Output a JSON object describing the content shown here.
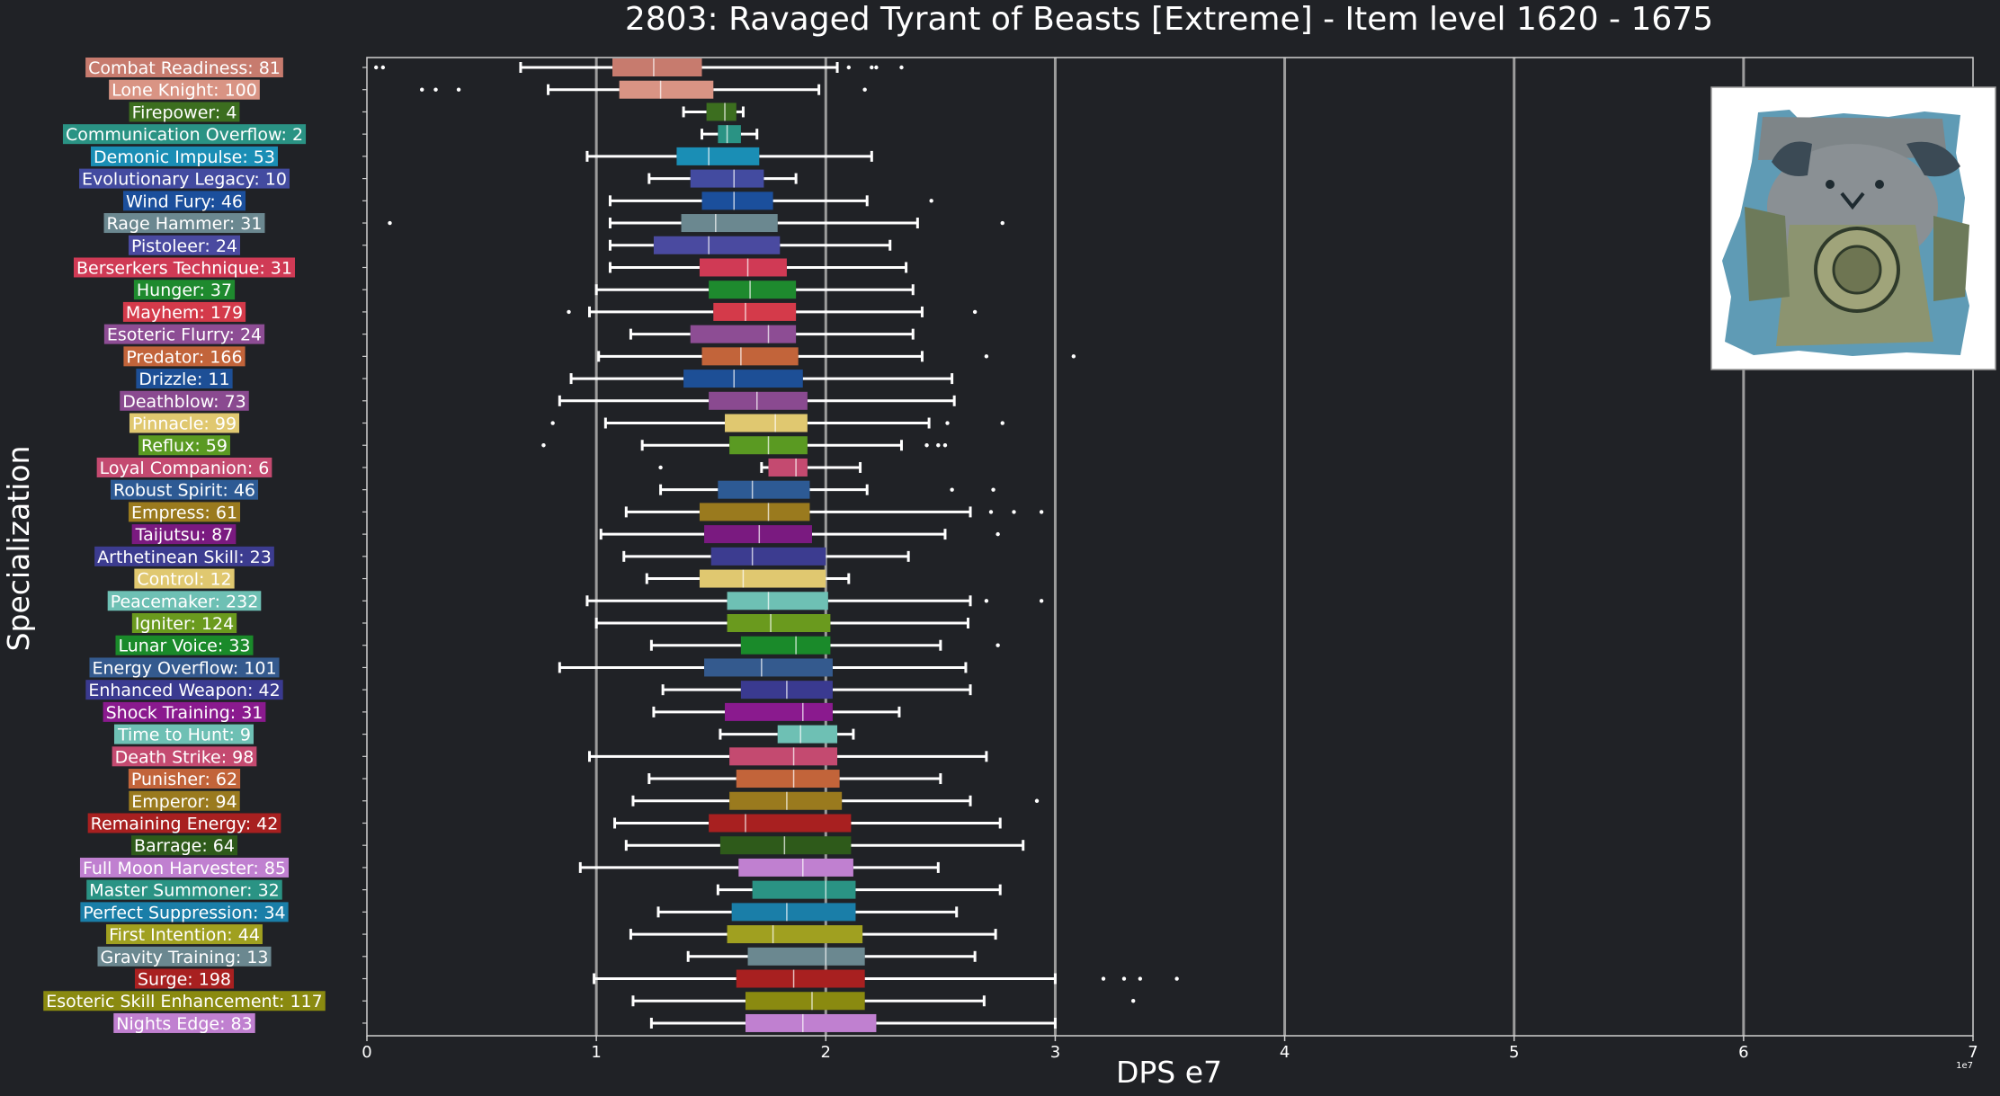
{
  "chart_data": {
    "type": "box",
    "title": "2803: Ravaged Tyrant of Beasts [Extreme] - Item level 1620 - 1675",
    "xlabel": "DPS e7",
    "ylabel": "Specialization",
    "x_scale_label": "1e7",
    "xlim": [
      0,
      7
    ],
    "xticks": [
      "0",
      "1",
      "2",
      "3",
      "4",
      "5",
      "6",
      "7"
    ],
    "grid": "vertical",
    "inset_image": "boss-portrait",
    "series": [
      {
        "label": "Combat Readiness: 81",
        "color": "#c77b6e",
        "whisker_low": 0.67,
        "q1": 1.07,
        "median": 1.25,
        "q3": 1.46,
        "whisker_high": 2.05,
        "outliers": [
          0.04,
          0.07,
          2.1,
          2.2,
          2.22,
          2.33
        ]
      },
      {
        "label": "Lone Knight: 100",
        "color": "#d99484",
        "whisker_low": 0.79,
        "q1": 1.1,
        "median": 1.28,
        "q3": 1.51,
        "whisker_high": 1.97,
        "outliers": [
          0.24,
          0.3,
          0.4,
          2.17
        ]
      },
      {
        "label": "Firepower: 4",
        "color": "#3c6e1f",
        "whisker_low": 1.38,
        "q1": 1.48,
        "median": 1.56,
        "q3": 1.61,
        "whisker_high": 1.64,
        "outliers": []
      },
      {
        "label": "Communication Overflow: 2",
        "color": "#2a9384",
        "whisker_low": 1.46,
        "q1": 1.53,
        "median": 1.57,
        "q3": 1.63,
        "whisker_high": 1.7,
        "outliers": []
      },
      {
        "label": "Demonic Impulse: 53",
        "color": "#1a8eb5",
        "whisker_low": 0.96,
        "q1": 1.35,
        "median": 1.49,
        "q3": 1.71,
        "whisker_high": 2.2,
        "outliers": []
      },
      {
        "label": "Evolutionary Legacy: 10",
        "color": "#434ba0",
        "whisker_low": 1.23,
        "q1": 1.41,
        "median": 1.6,
        "q3": 1.73,
        "whisker_high": 1.87,
        "outliers": []
      },
      {
        "label": "Wind Fury: 46",
        "color": "#1b4f9c",
        "whisker_low": 1.06,
        "q1": 1.46,
        "median": 1.6,
        "q3": 1.77,
        "whisker_high": 2.18,
        "outliers": [
          2.46
        ]
      },
      {
        "label": "Rage Hammer: 31",
        "color": "#6b8890",
        "whisker_low": 1.06,
        "q1": 1.37,
        "median": 1.52,
        "q3": 1.79,
        "whisker_high": 2.4,
        "outliers": [
          0.1,
          2.77
        ]
      },
      {
        "label": "Pistoleer: 24",
        "color": "#4a4aa0",
        "whisker_low": 1.06,
        "q1": 1.25,
        "median": 1.49,
        "q3": 1.8,
        "whisker_high": 2.28,
        "outliers": []
      },
      {
        "label": "Berserkers Technique: 31",
        "color": "#d03a55",
        "whisker_low": 1.06,
        "q1": 1.45,
        "median": 1.66,
        "q3": 1.83,
        "whisker_high": 2.35,
        "outliers": []
      },
      {
        "label": "Hunger: 37",
        "color": "#1e8a2e",
        "whisker_low": 1.0,
        "q1": 1.49,
        "median": 1.67,
        "q3": 1.87,
        "whisker_high": 2.38,
        "outliers": []
      },
      {
        "label": "Mayhem: 179",
        "color": "#d43a4a",
        "whisker_low": 0.97,
        "q1": 1.51,
        "median": 1.65,
        "q3": 1.87,
        "whisker_high": 2.42,
        "outliers": [
          0.88,
          2.65
        ]
      },
      {
        "label": "Esoteric Flurry: 24",
        "color": "#8d4d94",
        "whisker_low": 1.15,
        "q1": 1.41,
        "median": 1.75,
        "q3": 1.87,
        "whisker_high": 2.38,
        "outliers": []
      },
      {
        "label": "Predator: 166",
        "color": "#c2643a",
        "whisker_low": 1.01,
        "q1": 1.46,
        "median": 1.63,
        "q3": 1.88,
        "whisker_high": 2.42,
        "outliers": [
          2.7,
          3.08
        ]
      },
      {
        "label": "Drizzle: 11",
        "color": "#1d4f96",
        "whisker_low": 0.89,
        "q1": 1.38,
        "median": 1.6,
        "q3": 1.9,
        "whisker_high": 2.55,
        "outliers": []
      },
      {
        "label": "Deathblow: 73",
        "color": "#8a4a90",
        "whisker_low": 0.84,
        "q1": 1.49,
        "median": 1.7,
        "q3": 1.92,
        "whisker_high": 2.56,
        "outliers": []
      },
      {
        "label": "Pinnacle: 99",
        "color": "#e0c870",
        "whisker_low": 1.04,
        "q1": 1.56,
        "median": 1.78,
        "q3": 1.92,
        "whisker_high": 2.45,
        "outliers": [
          0.81,
          2.53,
          2.77
        ]
      },
      {
        "label": "Reflux: 59",
        "color": "#5a9a22",
        "whisker_low": 1.2,
        "q1": 1.58,
        "median": 1.75,
        "q3": 1.92,
        "whisker_high": 2.33,
        "outliers": [
          0.77,
          2.44,
          2.49,
          2.52
        ]
      },
      {
        "label": "Loyal Companion: 6",
        "color": "#c44a70",
        "whisker_low": 1.72,
        "q1": 1.75,
        "median": 1.87,
        "q3": 1.92,
        "whisker_high": 2.15,
        "outliers": [
          1.28
        ]
      },
      {
        "label": "Robust Spirit: 46",
        "color": "#2d5a94",
        "whisker_low": 1.28,
        "q1": 1.53,
        "median": 1.68,
        "q3": 1.93,
        "whisker_high": 2.18,
        "outliers": [
          2.55,
          2.73
        ]
      },
      {
        "label": "Empress: 61",
        "color": "#9a7a1e",
        "whisker_low": 1.13,
        "q1": 1.45,
        "median": 1.75,
        "q3": 1.93,
        "whisker_high": 2.63,
        "outliers": [
          2.72,
          2.82,
          2.94
        ]
      },
      {
        "label": "Taijutsu: 87",
        "color": "#7a1a80",
        "whisker_low": 1.02,
        "q1": 1.47,
        "median": 1.71,
        "q3": 1.94,
        "whisker_high": 2.52,
        "outliers": [
          2.75
        ]
      },
      {
        "label": "Arthetinean Skill: 23",
        "color": "#3c3c90",
        "whisker_low": 1.12,
        "q1": 1.5,
        "median": 1.68,
        "q3": 2.0,
        "whisker_high": 2.36,
        "outliers": []
      },
      {
        "label": "Control: 12",
        "color": "#e0c870",
        "whisker_low": 1.22,
        "q1": 1.45,
        "median": 1.64,
        "q3": 2.0,
        "whisker_high": 2.1,
        "outliers": []
      },
      {
        "label": "Peacemaker: 232",
        "color": "#6ec0b4",
        "whisker_low": 0.96,
        "q1": 1.57,
        "median": 1.75,
        "q3": 2.01,
        "whisker_high": 2.63,
        "outliers": [
          2.7,
          2.94
        ]
      },
      {
        "label": "Igniter: 124",
        "color": "#6a9a1e",
        "whisker_low": 1.0,
        "q1": 1.57,
        "median": 1.76,
        "q3": 2.02,
        "whisker_high": 2.62,
        "outliers": []
      },
      {
        "label": "Lunar Voice: 33",
        "color": "#1a8a2a",
        "whisker_low": 1.24,
        "q1": 1.63,
        "median": 1.87,
        "q3": 2.02,
        "whisker_high": 2.5,
        "outliers": [
          2.75
        ]
      },
      {
        "label": "Energy Overflow: 101",
        "color": "#345a8e",
        "whisker_low": 0.84,
        "q1": 1.47,
        "median": 1.72,
        "q3": 2.03,
        "whisker_high": 2.61,
        "outliers": []
      },
      {
        "label": "Enhanced Weapon: 42",
        "color": "#3a3a90",
        "whisker_low": 1.29,
        "q1": 1.63,
        "median": 1.83,
        "q3": 2.03,
        "whisker_high": 2.63,
        "outliers": []
      },
      {
        "label": "Shock Training: 31",
        "color": "#8a1a8e",
        "whisker_low": 1.25,
        "q1": 1.56,
        "median": 1.9,
        "q3": 2.03,
        "whisker_high": 2.32,
        "outliers": []
      },
      {
        "label": "Time to Hunt: 9",
        "color": "#6ec0b4",
        "whisker_low": 1.54,
        "q1": 1.79,
        "median": 1.89,
        "q3": 2.05,
        "whisker_high": 2.12,
        "outliers": []
      },
      {
        "label": "Death Strike: 98",
        "color": "#c44a70",
        "whisker_low": 0.97,
        "q1": 1.58,
        "median": 1.86,
        "q3": 2.05,
        "whisker_high": 2.7,
        "outliers": []
      },
      {
        "label": "Punisher: 62",
        "color": "#c2643a",
        "whisker_low": 1.23,
        "q1": 1.61,
        "median": 1.86,
        "q3": 2.06,
        "whisker_high": 2.5,
        "outliers": []
      },
      {
        "label": "Emperor: 94",
        "color": "#9a7a1e",
        "whisker_low": 1.16,
        "q1": 1.58,
        "median": 1.83,
        "q3": 2.07,
        "whisker_high": 2.63,
        "outliers": [
          2.92
        ]
      },
      {
        "label": "Remaining Energy: 42",
        "color": "#a82020",
        "whisker_low": 1.08,
        "q1": 1.49,
        "median": 1.65,
        "q3": 2.11,
        "whisker_high": 2.76,
        "outliers": []
      },
      {
        "label": "Barrage: 64",
        "color": "#2e5a1a",
        "whisker_low": 1.13,
        "q1": 1.54,
        "median": 1.82,
        "q3": 2.11,
        "whisker_high": 2.86,
        "outliers": []
      },
      {
        "label": "Full Moon Harvester: 85",
        "color": "#c080d0",
        "whisker_low": 0.93,
        "q1": 1.62,
        "median": 1.9,
        "q3": 2.12,
        "whisker_high": 2.49,
        "outliers": []
      },
      {
        "label": "Master Summoner: 32",
        "color": "#2a9384",
        "whisker_low": 1.53,
        "q1": 1.68,
        "median": 2.0,
        "q3": 2.13,
        "whisker_high": 2.76,
        "outliers": []
      },
      {
        "label": "Perfect Suppression: 34",
        "color": "#1a7ea8",
        "whisker_low": 1.27,
        "q1": 1.59,
        "median": 1.83,
        "q3": 2.13,
        "whisker_high": 2.57,
        "outliers": []
      },
      {
        "label": "First Intention: 44",
        "color": "#a0a020",
        "whisker_low": 1.15,
        "q1": 1.57,
        "median": 1.77,
        "q3": 2.16,
        "whisker_high": 2.74,
        "outliers": []
      },
      {
        "label": "Gravity Training: 13",
        "color": "#6b8890",
        "whisker_low": 1.4,
        "q1": 1.66,
        "median": 2.0,
        "q3": 2.17,
        "whisker_high": 2.65,
        "outliers": []
      },
      {
        "label": "Surge: 198",
        "color": "#a82020",
        "whisker_low": 0.99,
        "q1": 1.61,
        "median": 1.86,
        "q3": 2.17,
        "whisker_high": 3.0,
        "outliers": [
          3.21,
          3.3,
          3.37,
          3.53
        ]
      },
      {
        "label": "Esoteric Skill Enhancement: 117",
        "color": "#8a8a10",
        "whisker_low": 1.16,
        "q1": 1.65,
        "median": 1.94,
        "q3": 2.17,
        "whisker_high": 2.69,
        "outliers": [
          3.34
        ]
      },
      {
        "label": "Nights Edge: 83",
        "color": "#c080d0",
        "whisker_low": 1.24,
        "q1": 1.65,
        "median": 1.9,
        "q3": 2.22,
        "whisker_high": 3.0,
        "outliers": []
      }
    ]
  }
}
